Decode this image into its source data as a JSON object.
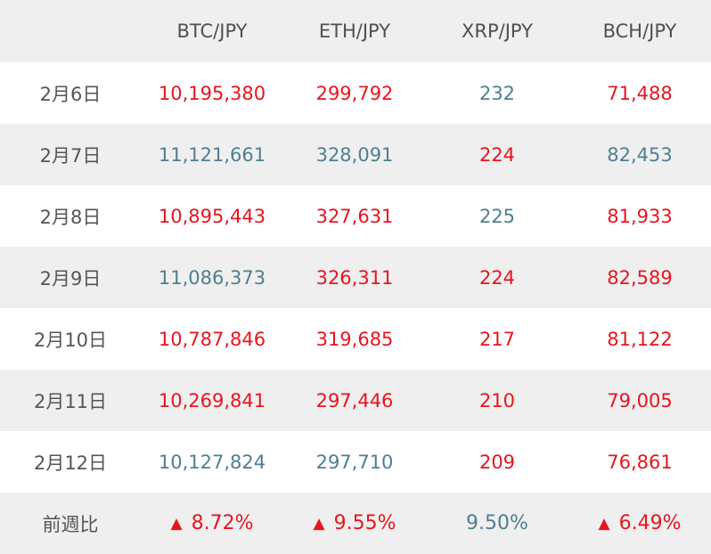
{
  "colors": {
    "up": "#e8141e",
    "down": "#4e8090",
    "stripe": "#efefef"
  },
  "header": {
    "corner": "",
    "columns": [
      "BTC/JPY",
      "ETH/JPY",
      "XRP/JPY",
      "BCH/JPY"
    ]
  },
  "rows": [
    {
      "date": "2月6日",
      "cells": [
        {
          "value": "10,195,380",
          "dir": "up"
        },
        {
          "value": "299,792",
          "dir": "up"
        },
        {
          "value": "232",
          "dir": "down"
        },
        {
          "value": "71,488",
          "dir": "up"
        }
      ]
    },
    {
      "date": "2月7日",
      "cells": [
        {
          "value": "11,121,661",
          "dir": "down"
        },
        {
          "value": "328,091",
          "dir": "down"
        },
        {
          "value": "224",
          "dir": "up"
        },
        {
          "value": "82,453",
          "dir": "down"
        }
      ]
    },
    {
      "date": "2月8日",
      "cells": [
        {
          "value": "10,895,443",
          "dir": "up"
        },
        {
          "value": "327,631",
          "dir": "up"
        },
        {
          "value": "225",
          "dir": "down"
        },
        {
          "value": "81,933",
          "dir": "up"
        }
      ]
    },
    {
      "date": "2月9日",
      "cells": [
        {
          "value": "11,086,373",
          "dir": "down"
        },
        {
          "value": "326,311",
          "dir": "up"
        },
        {
          "value": "224",
          "dir": "up"
        },
        {
          "value": "82,589",
          "dir": "up"
        }
      ]
    },
    {
      "date": "2月10日",
      "cells": [
        {
          "value": "10,787,846",
          "dir": "up"
        },
        {
          "value": "319,685",
          "dir": "up"
        },
        {
          "value": "217",
          "dir": "up"
        },
        {
          "value": "81,122",
          "dir": "up"
        }
      ]
    },
    {
      "date": "2月11日",
      "cells": [
        {
          "value": "10,269,841",
          "dir": "up"
        },
        {
          "value": "297,446",
          "dir": "up"
        },
        {
          "value": "210",
          "dir": "up"
        },
        {
          "value": "79,005",
          "dir": "up"
        }
      ]
    },
    {
      "date": "2月12日",
      "cells": [
        {
          "value": "10,127,824",
          "dir": "down"
        },
        {
          "value": "297,710",
          "dir": "down"
        },
        {
          "value": "209",
          "dir": "up"
        },
        {
          "value": "76,861",
          "dir": "up"
        }
      ]
    }
  ],
  "footer": {
    "label": "前週比",
    "cells": [
      {
        "value": "8.72%",
        "dir": "up",
        "icon": "triangle-up-icon",
        "symbol": "▲"
      },
      {
        "value": "9.55%",
        "dir": "up",
        "icon": "triangle-up-icon",
        "symbol": "▲"
      },
      {
        "value": "9.50%",
        "dir": "down",
        "icon": "",
        "symbol": ""
      },
      {
        "value": "6.49%",
        "dir": "up",
        "icon": "triangle-up-icon",
        "symbol": "▲"
      }
    ]
  }
}
